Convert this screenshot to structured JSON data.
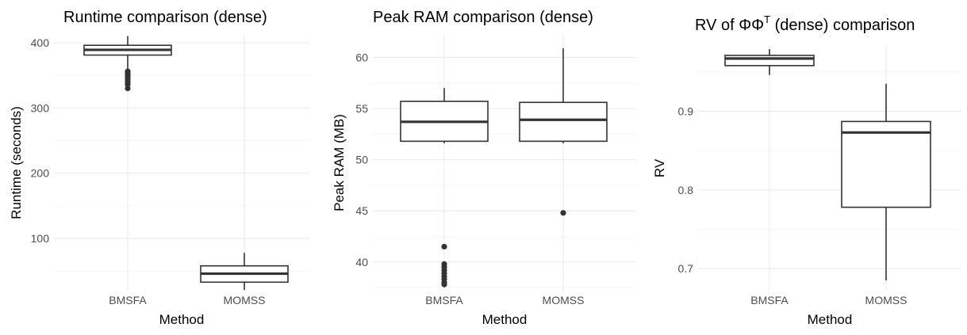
{
  "chart_data": [
    {
      "type": "box",
      "title": "Runtime comparison (dense)",
      "xlabel": "Method",
      "ylabel": "Runtime (seconds)",
      "categories": [
        "BMSFA",
        "MOMSS"
      ],
      "ylim": [
        20,
        412
      ],
      "yticks": [
        100,
        200,
        300,
        400
      ],
      "grid": true,
      "boxes": [
        {
          "name": "BMSFA",
          "whisker_low": 360,
          "q1": 381,
          "median": 389,
          "q3": 396,
          "whisker_high": 410,
          "outliers": [
            330,
            336,
            340,
            344,
            347,
            350,
            353,
            356
          ]
        },
        {
          "name": "MOMSS",
          "whisker_low": 21,
          "q1": 33,
          "median": 46,
          "q3": 58,
          "whisker_high": 78,
          "outliers": []
        }
      ]
    },
    {
      "type": "box",
      "title": "Peak RAM comparison (dense)",
      "xlabel": "Method",
      "ylabel": "Peak RAM (MB)",
      "categories": [
        "BMSFA",
        "MOMSS"
      ],
      "ylim": [
        37.2,
        62.2
      ],
      "yticks": [
        40,
        45,
        50,
        55,
        60
      ],
      "grid": true,
      "boxes": [
        {
          "name": "BMSFA",
          "whisker_low": 51.6,
          "q1": 51.8,
          "median": 53.7,
          "q3": 55.7,
          "whisker_high": 57.0,
          "outliers": [
            41.5,
            39.8,
            39.5,
            39.2,
            38.9,
            38.6,
            38.3,
            38.0,
            37.8
          ]
        },
        {
          "name": "MOMSS",
          "whisker_low": 51.6,
          "q1": 51.8,
          "median": 53.9,
          "q3": 55.6,
          "whisker_high": 60.9,
          "outliers": [
            44.8
          ]
        }
      ]
    },
    {
      "type": "box",
      "title": "RV of ΦΦ",
      "title_sup": "T",
      "title_suffix": " (dense)  comparison",
      "xlabel": "Method",
      "ylabel": "RV",
      "categories": [
        "BMSFA",
        "MOMSS"
      ],
      "ylim": [
        0.672,
        0.983
      ],
      "yticks": [
        0.7,
        0.8,
        0.9
      ],
      "ytick_labels": [
        "0.7",
        "0.8",
        "0.9"
      ],
      "grid": true,
      "boxes": [
        {
          "name": "BMSFA",
          "whisker_low": 0.946,
          "q1": 0.958,
          "median": 0.967,
          "q3": 0.971,
          "whisker_high": 0.979,
          "outliers": []
        },
        {
          "name": "MOMSS",
          "whisker_low": 0.685,
          "q1": 0.778,
          "median": 0.873,
          "q3": 0.887,
          "whisker_high": 0.935,
          "outliers": []
        }
      ]
    }
  ]
}
